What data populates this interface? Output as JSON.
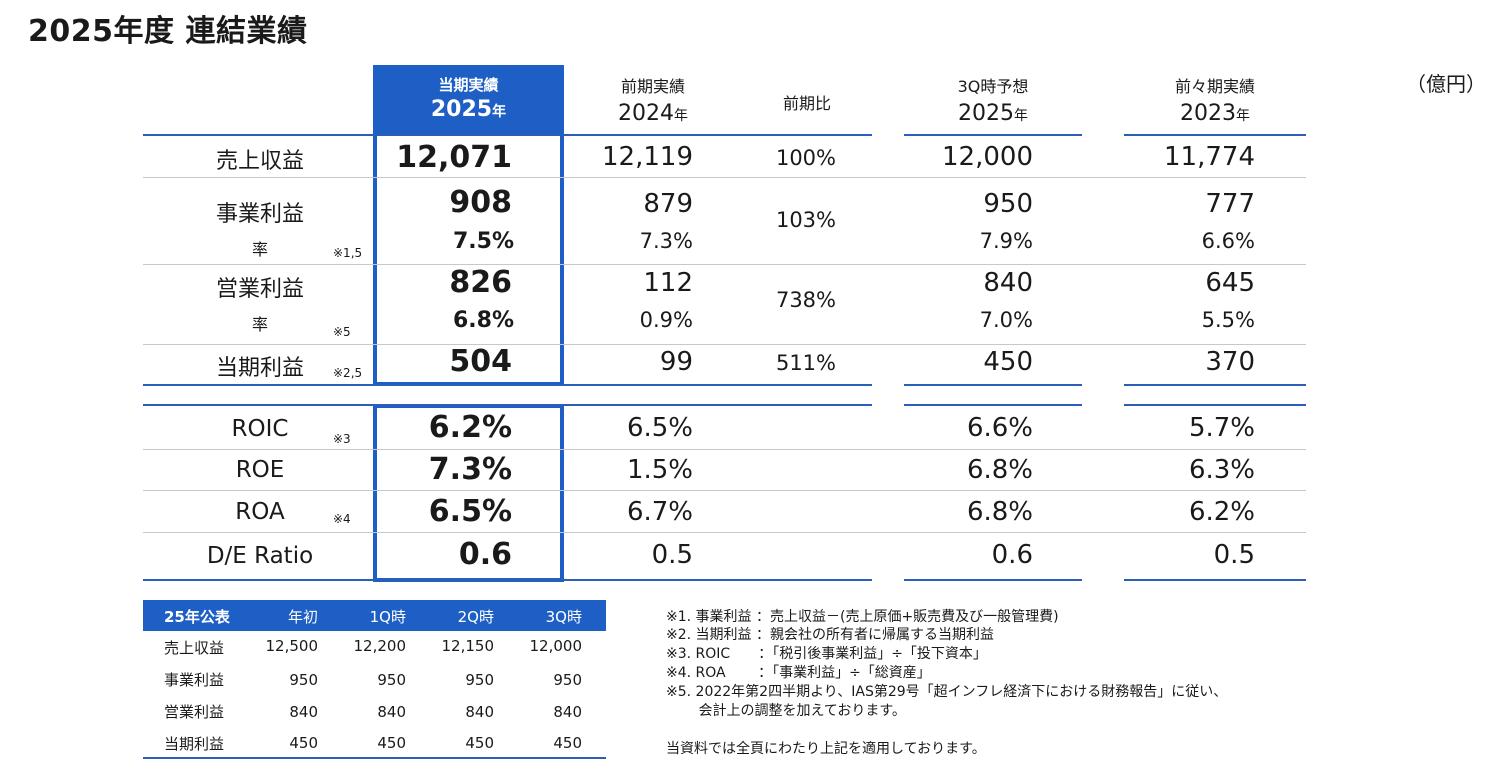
{
  "title": "2025年度 連結業績",
  "unit": "（億円）",
  "columns": {
    "current": {
      "line1": "当期実績",
      "year": "2025",
      "suffix": "年"
    },
    "prior": {
      "line1": "前期実績",
      "year": "2024",
      "suffix": "年"
    },
    "yoy": {
      "line1": "前期比"
    },
    "forecast": {
      "line1": "3Q時予想",
      "year": "2025",
      "suffix": "年"
    },
    "prior2": {
      "line1": "前々期実績",
      "year": "2023",
      "suffix": "年"
    }
  },
  "rows": {
    "revenue": {
      "label": "売上収益",
      "current": "12,071",
      "prior": "12,119",
      "yoy": "100%",
      "forecast": "12,000",
      "prior2": "11,774"
    },
    "business_profit": {
      "label": "事業利益",
      "current": "908",
      "prior": "879",
      "yoy": "103%",
      "forecast": "950",
      "prior2": "777",
      "rate_label": "率",
      "note": "※1,5",
      "current_rate": "7.5%",
      "prior_rate": "7.3%",
      "forecast_rate": "7.9%",
      "prior2_rate": "6.6%"
    },
    "operating_profit": {
      "label": "営業利益",
      "current": "826",
      "prior": "112",
      "yoy": "738%",
      "forecast": "840",
      "prior2": "645",
      "rate_label": "率",
      "note": "※5",
      "current_rate": "6.8%",
      "prior_rate": "0.9%",
      "forecast_rate": "7.0%",
      "prior2_rate": "5.5%"
    },
    "net_profit": {
      "label": "当期利益",
      "note": "※2,5",
      "current": "504",
      "prior": "99",
      "yoy": "511%",
      "forecast": "450",
      "prior2": "370"
    },
    "roic": {
      "label": "ROIC",
      "note": "※3",
      "current": "6.2%",
      "prior": "6.5%",
      "forecast": "6.6%",
      "prior2": "5.7%"
    },
    "roe": {
      "label": "ROE",
      "current": "7.3%",
      "prior": "1.5%",
      "forecast": "6.8%",
      "prior2": "6.3%"
    },
    "roa": {
      "label": "ROA",
      "note": "※4",
      "current": "6.5%",
      "prior": "6.7%",
      "forecast": "6.8%",
      "prior2": "6.2%"
    },
    "de_ratio": {
      "label": "D/E Ratio",
      "current": "0.6",
      "prior": "0.5",
      "forecast": "0.6",
      "prior2": "0.5"
    }
  },
  "forecast_table": {
    "headers": [
      "25年公表",
      "年初",
      "1Q時",
      "2Q時",
      "3Q時"
    ],
    "rows": [
      [
        "売上収益",
        "12,500",
        "12,200",
        "12,150",
        "12,000"
      ],
      [
        "事業利益",
        "950",
        "950",
        "950",
        "950"
      ],
      [
        "営業利益",
        "840",
        "840",
        "840",
        "840"
      ],
      [
        "当期利益",
        "450",
        "450",
        "450",
        "450"
      ]
    ]
  },
  "footnotes": [
    "※1. 事業利益 ：売上収益－(売上原価+販売費及び一般管理費)",
    "※2. 当期利益 ：親会社の所有者に帰属する当期利益",
    "※3. ROIC　　：「税引後事業利益」÷「投下資本」",
    "※4. ROA　　 ：「事業利益」÷「総資産」",
    "※5. 2022年第2四半期より、IAS第29号「超インフレ経済下における財務報告」に従い、",
    "　　 会計上の調整を加えております。",
    "当資料では全頁にわたり上記を適用しております。"
  ],
  "colors": {
    "accent": "#1e5fc6",
    "line_blue": "#2a5fb4",
    "line_gray": "#c8c8c8"
  }
}
